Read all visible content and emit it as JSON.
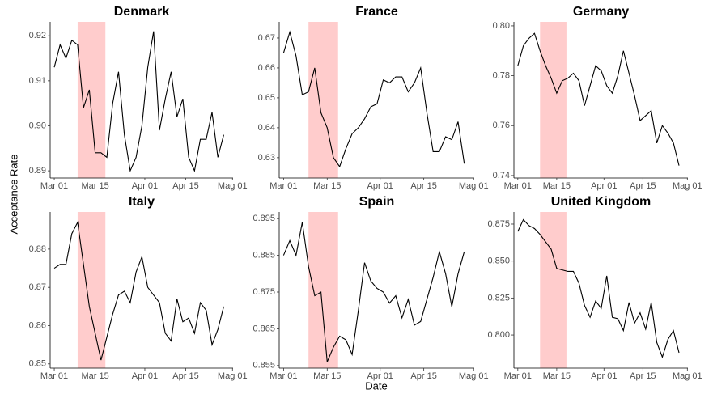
{
  "xlabel": "Date",
  "ylabel": "Acceptance Rate",
  "chart_data": [
    {
      "type": "line",
      "title": "Denmark",
      "color": "#000000",
      "shade_x": [
        8,
        17.5
      ],
      "shade_color": "#ffcccc",
      "x": [
        0,
        2,
        4,
        6,
        8,
        10,
        12,
        14,
        16,
        18,
        20,
        22,
        24,
        26,
        28,
        30,
        32,
        34,
        36,
        38,
        40,
        42,
        44,
        46,
        48,
        50,
        52,
        54,
        56,
        58
      ],
      "values": [
        0.913,
        0.918,
        0.915,
        0.919,
        0.918,
        0.904,
        0.908,
        0.894,
        0.894,
        0.893,
        0.905,
        0.912,
        0.898,
        0.89,
        0.893,
        0.9,
        0.913,
        0.921,
        0.899,
        0.906,
        0.912,
        0.902,
        0.906,
        0.893,
        0.89,
        0.897,
        0.897,
        0.903,
        0.893,
        0.898
      ],
      "xlim": [
        -1.4,
        61.2
      ],
      "xticks": [
        {
          "value": 0,
          "label": "Mar 01"
        },
        {
          "value": 14,
          "label": "Mar 15"
        },
        {
          "value": 31,
          "label": "Apr 01"
        },
        {
          "value": 45,
          "label": "Apr 15"
        },
        {
          "value": 61,
          "label": "Mag 01"
        }
      ],
      "ylim": [
        0.8884,
        0.9231
      ],
      "yticks": [
        0.89,
        {
          "value": 0.9,
          "label": "0.90"
        },
        0.91,
        0.92
      ]
    },
    {
      "type": "line",
      "title": "France",
      "color": "#000000",
      "shade_x": [
        8,
        17.5
      ],
      "shade_color": "#ffcccc",
      "x": [
        0,
        2,
        4,
        6,
        8,
        10,
        12,
        14,
        16,
        18,
        20,
        22,
        24,
        26,
        28,
        30,
        32,
        34,
        36,
        38,
        40,
        42,
        44,
        46,
        48,
        50,
        52,
        54,
        56,
        58
      ],
      "values": [
        0.665,
        0.672,
        0.664,
        0.651,
        0.652,
        0.66,
        0.645,
        0.64,
        0.63,
        0.627,
        0.633,
        0.638,
        0.64,
        0.643,
        0.647,
        0.648,
        0.656,
        0.655,
        0.657,
        0.657,
        0.652,
        0.655,
        0.66,
        0.645,
        0.632,
        0.632,
        0.637,
        0.636,
        0.642,
        0.628
      ],
      "xlim": [
        -1.4,
        61.2
      ],
      "xticks": [
        {
          "value": 0,
          "label": "Mar 01"
        },
        {
          "value": 14,
          "label": "Mar 15"
        },
        {
          "value": 31,
          "label": "Apr 01"
        },
        {
          "value": 45,
          "label": "Apr 15"
        },
        {
          "value": 61,
          "label": "Mag 01"
        }
      ],
      "ylim": [
        0.6232,
        0.6754
      ],
      "yticks": [
        0.63,
        0.64,
        0.65,
        0.66,
        0.67
      ]
    },
    {
      "type": "line",
      "title": "Germany",
      "color": "#000000",
      "shade_x": [
        8,
        17.5
      ],
      "shade_color": "#ffcccc",
      "x": [
        0,
        2,
        4,
        6,
        8,
        10,
        12,
        14,
        16,
        18,
        20,
        22,
        24,
        26,
        28,
        30,
        32,
        34,
        36,
        38,
        40,
        42,
        44,
        46,
        48,
        50,
        52,
        54,
        56,
        58
      ],
      "values": [
        0.784,
        0.792,
        0.795,
        0.797,
        0.79,
        0.784,
        0.779,
        0.773,
        0.778,
        0.779,
        0.781,
        0.778,
        0.768,
        0.776,
        0.784,
        0.782,
        0.776,
        0.773,
        0.78,
        0.79,
        0.781,
        0.772,
        0.762,
        0.764,
        0.766,
        0.753,
        0.76,
        0.757,
        0.753,
        0.744
      ],
      "xlim": [
        -1.4,
        61.2
      ],
      "xticks": [
        {
          "value": 0,
          "label": "Mar 01"
        },
        {
          "value": 14,
          "label": "Mar 15"
        },
        {
          "value": 31,
          "label": "Apr 01"
        },
        {
          "value": 45,
          "label": "Apr 15"
        },
        {
          "value": 61,
          "label": "Mag 01"
        }
      ],
      "ylim": [
        0.739,
        0.8016
      ],
      "yticks": [
        0.74,
        0.76,
        0.78,
        {
          "value": 0.8,
          "label": "0.80"
        }
      ]
    },
    {
      "type": "line",
      "title": "Italy",
      "color": "#000000",
      "shade_x": [
        8,
        17.5
      ],
      "shade_color": "#ffcccc",
      "x": [
        0,
        2,
        4,
        6,
        8,
        10,
        12,
        14,
        16,
        18,
        20,
        22,
        24,
        26,
        28,
        30,
        32,
        34,
        36,
        38,
        40,
        42,
        44,
        46,
        48,
        50,
        52,
        54,
        56,
        58
      ],
      "values": [
        0.875,
        0.876,
        0.876,
        0.884,
        0.887,
        0.876,
        0.865,
        0.858,
        0.851,
        0.857,
        0.863,
        0.868,
        0.869,
        0.866,
        0.874,
        0.878,
        0.87,
        0.868,
        0.866,
        0.858,
        0.856,
        0.867,
        0.861,
        0.862,
        0.858,
        0.866,
        0.864,
        0.855,
        0.859,
        0.865
      ],
      "xlim": [
        -1.4,
        61.2
      ],
      "xticks": [
        {
          "value": 0,
          "label": "Mar 01"
        },
        {
          "value": 14,
          "label": "Mar 15"
        },
        {
          "value": 31,
          "label": "Apr 01"
        },
        {
          "value": 45,
          "label": "Apr 15"
        },
        {
          "value": 61,
          "label": "Mag 01"
        }
      ],
      "ylim": [
        0.8489,
        0.8897
      ],
      "yticks": [
        0.85,
        0.86,
        0.87,
        0.88
      ]
    },
    {
      "type": "line",
      "title": "Spain",
      "color": "#000000",
      "shade_x": [
        8,
        17.5
      ],
      "shade_color": "#ffcccc",
      "x": [
        0,
        2,
        4,
        6,
        8,
        10,
        12,
        14,
        16,
        18,
        20,
        22,
        24,
        26,
        28,
        30,
        32,
        34,
        36,
        38,
        40,
        42,
        44,
        46,
        48,
        50,
        52,
        54,
        56,
        58
      ],
      "values": [
        0.885,
        0.889,
        0.885,
        0.894,
        0.882,
        0.874,
        0.875,
        0.856,
        0.86,
        0.863,
        0.862,
        0.858,
        0.87,
        0.883,
        0.878,
        0.876,
        0.875,
        0.872,
        0.874,
        0.868,
        0.873,
        0.866,
        0.867,
        0.873,
        0.879,
        0.886,
        0.88,
        0.871,
        0.88,
        0.886
      ],
      "xlim": [
        -1.4,
        61.2
      ],
      "xticks": [
        {
          "value": 0,
          "label": "Mar 01"
        },
        {
          "value": 14,
          "label": "Mar 15"
        },
        {
          "value": 31,
          "label": "Apr 01"
        },
        {
          "value": 45,
          "label": "Apr 15"
        },
        {
          "value": 61,
          "label": "Mag 01"
        }
      ],
      "ylim": [
        0.8543,
        0.8968
      ],
      "yticks": [
        0.855,
        0.865,
        0.875,
        0.885,
        0.895
      ]
    },
    {
      "type": "line",
      "title": "United Kingdom",
      "color": "#000000",
      "shade_x": [
        8,
        17.5
      ],
      "shade_color": "#ffcccc",
      "x": [
        0,
        2,
        4,
        6,
        8,
        10,
        12,
        14,
        16,
        18,
        20,
        22,
        24,
        26,
        28,
        30,
        32,
        34,
        36,
        38,
        40,
        42,
        44,
        46,
        48,
        50,
        52,
        54,
        56,
        58
      ],
      "values": [
        0.87,
        0.878,
        0.874,
        0.872,
        0.868,
        0.863,
        0.858,
        0.845,
        0.844,
        0.843,
        0.843,
        0.835,
        0.82,
        0.812,
        0.823,
        0.818,
        0.84,
        0.812,
        0.811,
        0.803,
        0.822,
        0.808,
        0.815,
        0.804,
        0.822,
        0.795,
        0.785,
        0.797,
        0.803,
        0.788
      ],
      "xlim": [
        -1.4,
        61.2
      ],
      "xticks": [
        {
          "value": 0,
          "label": "Mar 01"
        },
        {
          "value": 14,
          "label": "Mar 15"
        },
        {
          "value": 31,
          "label": "Apr 01"
        },
        {
          "value": 45,
          "label": "Apr 15"
        },
        {
          "value": 61,
          "label": "Mag 01"
        }
      ],
      "ylim": [
        0.7776,
        0.8832
      ],
      "yticks": [
        {
          "value": 0.8,
          "label": "0.800"
        },
        0.825,
        {
          "value": 0.85,
          "label": "0.850"
        },
        0.875
      ]
    }
  ]
}
